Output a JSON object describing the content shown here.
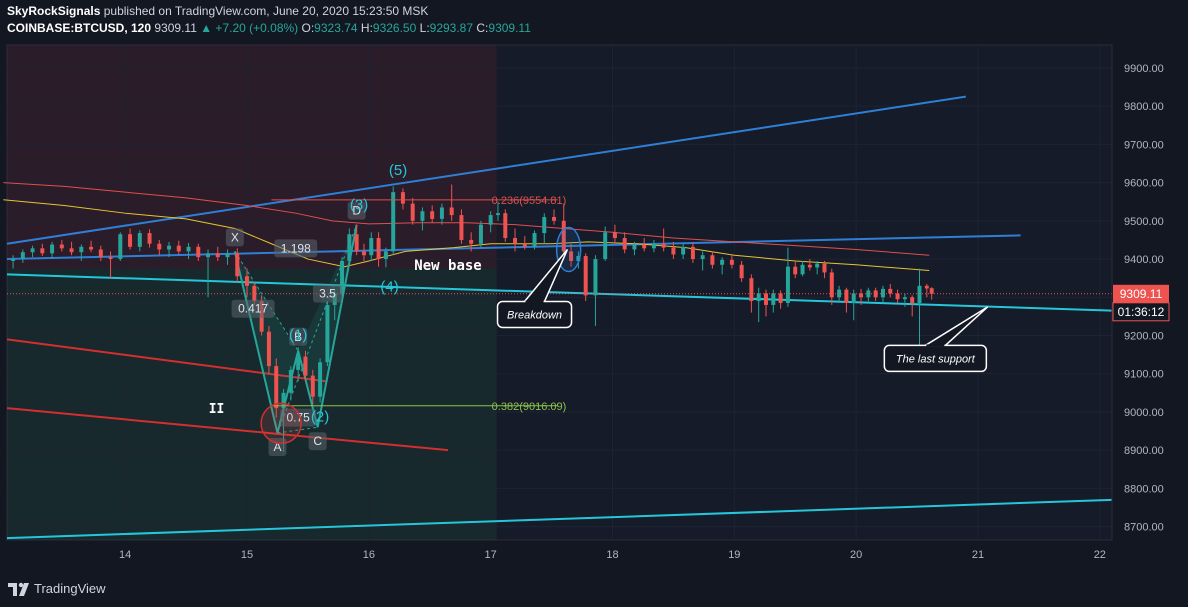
{
  "header": {
    "author": "SkyRockSignals",
    "published_text": "published on TradingView.com, June 20, 2020 15:23:50 MSK",
    "symbol": "COINBASE:BTCUSD, 120",
    "last": "9309.11",
    "change": "▲ +7.20 (+0.08%)",
    "o_label": "O:",
    "o_value": "9323.74",
    "h_label": "H:",
    "h_value": "9326.50",
    "l_label": "L:",
    "l_value": "9293.87",
    "c_label": "C:",
    "c_value": "9309.11"
  },
  "footer": {
    "brand": "TradingView"
  },
  "colors": {
    "bg": "#131722",
    "up": "#26a69a",
    "down": "#ef5350",
    "blue_line": "#2f7fd6",
    "cyan_line": "#26c6da",
    "red_line": "#d32f2f",
    "yellow_ma": "#e6c534",
    "red_ma": "#e0504d"
  },
  "chart_data": {
    "type": "candlestick",
    "title": "COINBASE:BTCUSD, 120",
    "x_ticks": [
      "14",
      "15",
      "16",
      "17",
      "18",
      "19",
      "20",
      "21",
      "22"
    ],
    "y_ticks": [
      "9900.00",
      "9800.00",
      "9700.00",
      "9600.00",
      "9500.00",
      "9400.00",
      "9300.00",
      "9200.00",
      "9100.00",
      "9000.00",
      "8900.00",
      "8800.00",
      "8700.00"
    ],
    "ylim": [
      8665,
      9960
    ],
    "xlim": [
      13.03,
      22.1
    ],
    "price_label": "9309.11",
    "countdown_label": "01:36:12",
    "candles": [
      {
        "t": 13.08,
        "o": 9395,
        "h": 9410,
        "l": 9375,
        "c": 9400
      },
      {
        "t": 13.16,
        "o": 9400,
        "h": 9425,
        "l": 9390,
        "c": 9418
      },
      {
        "t": 13.24,
        "o": 9418,
        "h": 9435,
        "l": 9405,
        "c": 9428
      },
      {
        "t": 13.32,
        "o": 9428,
        "h": 9440,
        "l": 9408,
        "c": 9415
      },
      {
        "t": 13.4,
        "o": 9415,
        "h": 9445,
        "l": 9400,
        "c": 9438
      },
      {
        "t": 13.48,
        "o": 9438,
        "h": 9450,
        "l": 9420,
        "c": 9428
      },
      {
        "t": 13.56,
        "o": 9428,
        "h": 9445,
        "l": 9410,
        "c": 9418
      },
      {
        "t": 13.64,
        "o": 9418,
        "h": 9438,
        "l": 9395,
        "c": 9432
      },
      {
        "t": 13.72,
        "o": 9432,
        "h": 9448,
        "l": 9418,
        "c": 9425
      },
      {
        "t": 13.8,
        "o": 9425,
        "h": 9435,
        "l": 9395,
        "c": 9405
      },
      {
        "t": 13.88,
        "o": 9405,
        "h": 9420,
        "l": 9350,
        "c": 9400
      },
      {
        "t": 13.96,
        "o": 9400,
        "h": 9470,
        "l": 9395,
        "c": 9465
      },
      {
        "t": 14.04,
        "o": 9465,
        "h": 9480,
        "l": 9425,
        "c": 9432
      },
      {
        "t": 14.12,
        "o": 9432,
        "h": 9475,
        "l": 9420,
        "c": 9468
      },
      {
        "t": 14.2,
        "o": 9468,
        "h": 9478,
        "l": 9430,
        "c": 9440
      },
      {
        "t": 14.28,
        "o": 9440,
        "h": 9450,
        "l": 9410,
        "c": 9425
      },
      {
        "t": 14.36,
        "o": 9425,
        "h": 9445,
        "l": 9405,
        "c": 9435
      },
      {
        "t": 14.44,
        "o": 9435,
        "h": 9448,
        "l": 9412,
        "c": 9420
      },
      {
        "t": 14.52,
        "o": 9420,
        "h": 9442,
        "l": 9400,
        "c": 9432
      },
      {
        "t": 14.6,
        "o": 9432,
        "h": 9440,
        "l": 9395,
        "c": 9405
      },
      {
        "t": 14.68,
        "o": 9405,
        "h": 9425,
        "l": 9300,
        "c": 9415
      },
      {
        "t": 14.76,
        "o": 9415,
        "h": 9432,
        "l": 9395,
        "c": 9405
      },
      {
        "t": 14.84,
        "o": 9405,
        "h": 9425,
        "l": 9385,
        "c": 9415
      },
      {
        "t": 14.92,
        "o": 9415,
        "h": 9428,
        "l": 9340,
        "c": 9355
      },
      {
        "t": 15.0,
        "o": 9355,
        "h": 9375,
        "l": 9300,
        "c": 9330
      },
      {
        "t": 15.06,
        "o": 9330,
        "h": 9340,
        "l": 9280,
        "c": 9290
      },
      {
        "t": 15.12,
        "o": 9290,
        "h": 9305,
        "l": 9200,
        "c": 9210
      },
      {
        "t": 15.18,
        "o": 9210,
        "h": 9225,
        "l": 9100,
        "c": 9120
      },
      {
        "t": 15.24,
        "o": 9120,
        "h": 9140,
        "l": 8985,
        "c": 9010
      },
      {
        "t": 15.3,
        "o": 9010,
        "h": 9060,
        "l": 8895,
        "c": 9050
      },
      {
        "t": 15.36,
        "o": 9050,
        "h": 9120,
        "l": 9030,
        "c": 9110
      },
      {
        "t": 15.42,
        "o": 9110,
        "h": 9170,
        "l": 9080,
        "c": 9145
      },
      {
        "t": 15.48,
        "o": 9145,
        "h": 9160,
        "l": 9080,
        "c": 9095
      },
      {
        "t": 15.54,
        "o": 9095,
        "h": 9110,
        "l": 9020,
        "c": 9040
      },
      {
        "t": 15.6,
        "o": 9040,
        "h": 9140,
        "l": 9025,
        "c": 9130
      },
      {
        "t": 15.66,
        "o": 9130,
        "h": 9290,
        "l": 9120,
        "c": 9280
      },
      {
        "t": 15.72,
        "o": 9280,
        "h": 9320,
        "l": 9240,
        "c": 9310
      },
      {
        "t": 15.78,
        "o": 9310,
        "h": 9405,
        "l": 9300,
        "c": 9395
      },
      {
        "t": 15.84,
        "o": 9395,
        "h": 9480,
        "l": 9385,
        "c": 9465
      },
      {
        "t": 15.9,
        "o": 9465,
        "h": 9490,
        "l": 9410,
        "c": 9420
      },
      {
        "t": 15.96,
        "o": 9420,
        "h": 9440,
        "l": 9395,
        "c": 9410
      },
      {
        "t": 16.02,
        "o": 9410,
        "h": 9470,
        "l": 9395,
        "c": 9455
      },
      {
        "t": 16.08,
        "o": 9455,
        "h": 9470,
        "l": 9380,
        "c": 9400
      },
      {
        "t": 16.14,
        "o": 9400,
        "h": 9430,
        "l": 9378,
        "c": 9420
      },
      {
        "t": 16.2,
        "o": 9420,
        "h": 9590,
        "l": 9410,
        "c": 9575
      },
      {
        "t": 16.28,
        "o": 9575,
        "h": 9585,
        "l": 9530,
        "c": 9545
      },
      {
        "t": 16.36,
        "o": 9545,
        "h": 9560,
        "l": 9490,
        "c": 9500
      },
      {
        "t": 16.44,
        "o": 9500,
        "h": 9535,
        "l": 9475,
        "c": 9525
      },
      {
        "t": 16.52,
        "o": 9525,
        "h": 9540,
        "l": 9495,
        "c": 9505
      },
      {
        "t": 16.6,
        "o": 9505,
        "h": 9545,
        "l": 9490,
        "c": 9535
      },
      {
        "t": 16.68,
        "o": 9535,
        "h": 9595,
        "l": 9500,
        "c": 9515
      },
      {
        "t": 16.76,
        "o": 9515,
        "h": 9530,
        "l": 9440,
        "c": 9450
      },
      {
        "t": 16.84,
        "o": 9450,
        "h": 9470,
        "l": 9420,
        "c": 9440
      },
      {
        "t": 16.92,
        "o": 9440,
        "h": 9500,
        "l": 9430,
        "c": 9490
      },
      {
        "t": 17.0,
        "o": 9490,
        "h": 9525,
        "l": 9470,
        "c": 9515
      },
      {
        "t": 17.06,
        "o": 9515,
        "h": 9550,
        "l": 9500,
        "c": 9520
      },
      {
        "t": 17.12,
        "o": 9520,
        "h": 9530,
        "l": 9445,
        "c": 9455
      },
      {
        "t": 17.2,
        "o": 9455,
        "h": 9480,
        "l": 9420,
        "c": 9440
      },
      {
        "t": 17.28,
        "o": 9440,
        "h": 9460,
        "l": 9425,
        "c": 9432
      },
      {
        "t": 17.36,
        "o": 9432,
        "h": 9475,
        "l": 9425,
        "c": 9468
      },
      {
        "t": 17.44,
        "o": 9468,
        "h": 9520,
        "l": 9440,
        "c": 9510
      },
      {
        "t": 17.52,
        "o": 9510,
        "h": 9530,
        "l": 9490,
        "c": 9500
      },
      {
        "t": 17.6,
        "o": 9500,
        "h": 9545,
        "l": 9400,
        "c": 9420
      },
      {
        "t": 17.66,
        "o": 9420,
        "h": 9440,
        "l": 9380,
        "c": 9395
      },
      {
        "t": 17.72,
        "o": 9395,
        "h": 9420,
        "l": 9375,
        "c": 9408
      },
      {
        "t": 17.78,
        "o": 9408,
        "h": 9415,
        "l": 9290,
        "c": 9305
      },
      {
        "t": 17.86,
        "o": 9305,
        "h": 9410,
        "l": 9225,
        "c": 9400
      },
      {
        "t": 17.94,
        "o": 9400,
        "h": 9485,
        "l": 9395,
        "c": 9470
      },
      {
        "t": 18.02,
        "o": 9470,
        "h": 9490,
        "l": 9440,
        "c": 9455
      },
      {
        "t": 18.1,
        "o": 9455,
        "h": 9470,
        "l": 9415,
        "c": 9425
      },
      {
        "t": 18.18,
        "o": 9425,
        "h": 9445,
        "l": 9410,
        "c": 9438
      },
      {
        "t": 18.26,
        "o": 9438,
        "h": 9455,
        "l": 9420,
        "c": 9428
      },
      {
        "t": 18.34,
        "o": 9428,
        "h": 9450,
        "l": 9418,
        "c": 9440
      },
      {
        "t": 18.42,
        "o": 9440,
        "h": 9480,
        "l": 9420,
        "c": 9430
      },
      {
        "t": 18.5,
        "o": 9430,
        "h": 9445,
        "l": 9400,
        "c": 9412
      },
      {
        "t": 18.58,
        "o": 9412,
        "h": 9440,
        "l": 9400,
        "c": 9432
      },
      {
        "t": 18.66,
        "o": 9432,
        "h": 9445,
        "l": 9390,
        "c": 9400
      },
      {
        "t": 18.74,
        "o": 9400,
        "h": 9420,
        "l": 9370,
        "c": 9410
      },
      {
        "t": 18.82,
        "o": 9410,
        "h": 9420,
        "l": 9375,
        "c": 9385
      },
      {
        "t": 18.9,
        "o": 9385,
        "h": 9405,
        "l": 9360,
        "c": 9398
      },
      {
        "t": 18.98,
        "o": 9398,
        "h": 9410,
        "l": 9375,
        "c": 9385
      },
      {
        "t": 19.06,
        "o": 9385,
        "h": 9395,
        "l": 9340,
        "c": 9350
      },
      {
        "t": 19.14,
        "o": 9350,
        "h": 9360,
        "l": 9260,
        "c": 9290
      },
      {
        "t": 19.2,
        "o": 9290,
        "h": 9325,
        "l": 9235,
        "c": 9310
      },
      {
        "t": 19.26,
        "o": 9310,
        "h": 9320,
        "l": 9250,
        "c": 9280
      },
      {
        "t": 19.32,
        "o": 9280,
        "h": 9320,
        "l": 9260,
        "c": 9310
      },
      {
        "t": 19.38,
        "o": 9310,
        "h": 9318,
        "l": 9270,
        "c": 9285
      },
      {
        "t": 19.44,
        "o": 9285,
        "h": 9430,
        "l": 9275,
        "c": 9380
      },
      {
        "t": 19.5,
        "o": 9380,
        "h": 9395,
        "l": 9350,
        "c": 9360
      },
      {
        "t": 19.56,
        "o": 9360,
        "h": 9395,
        "l": 9355,
        "c": 9385
      },
      {
        "t": 19.62,
        "o": 9385,
        "h": 9400,
        "l": 9370,
        "c": 9378
      },
      {
        "t": 19.68,
        "o": 9378,
        "h": 9395,
        "l": 9360,
        "c": 9388
      },
      {
        "t": 19.74,
        "o": 9388,
        "h": 9395,
        "l": 9350,
        "c": 9365
      },
      {
        "t": 19.8,
        "o": 9365,
        "h": 9375,
        "l": 9280,
        "c": 9300
      },
      {
        "t": 19.86,
        "o": 9300,
        "h": 9330,
        "l": 9285,
        "c": 9320
      },
      {
        "t": 19.92,
        "o": 9320,
        "h": 9325,
        "l": 9260,
        "c": 9285
      },
      {
        "t": 19.98,
        "o": 9285,
        "h": 9320,
        "l": 9240,
        "c": 9310
      },
      {
        "t": 20.04,
        "o": 9310,
        "h": 9322,
        "l": 9280,
        "c": 9300
      },
      {
        "t": 20.1,
        "o": 9300,
        "h": 9325,
        "l": 9285,
        "c": 9318
      },
      {
        "t": 20.16,
        "o": 9318,
        "h": 9325,
        "l": 9290,
        "c": 9300
      },
      {
        "t": 20.22,
        "o": 9300,
        "h": 9330,
        "l": 9285,
        "c": 9322
      },
      {
        "t": 20.28,
        "o": 9322,
        "h": 9335,
        "l": 9300,
        "c": 9310
      },
      {
        "t": 20.34,
        "o": 9310,
        "h": 9320,
        "l": 9285,
        "c": 9295
      },
      {
        "t": 20.4,
        "o": 9295,
        "h": 9310,
        "l": 9275,
        "c": 9300
      },
      {
        "t": 20.46,
        "o": 9300,
        "h": 9305,
        "l": 9250,
        "c": 9285
      },
      {
        "t": 20.52,
        "o": 9285,
        "h": 9375,
        "l": 9160,
        "c": 9330
      },
      {
        "t": 20.58,
        "o": 9330,
        "h": 9335,
        "l": 9300,
        "c": 9323
      },
      {
        "t": 20.62,
        "o": 9323.74,
        "h": 9326.5,
        "l": 9293.87,
        "c": 9309.11
      }
    ],
    "ma_yellow": [
      [
        13.0,
        9555
      ],
      [
        13.5,
        9540
      ],
      [
        14.0,
        9520
      ],
      [
        14.5,
        9505
      ],
      [
        14.9,
        9480
      ],
      [
        15.2,
        9440
      ],
      [
        15.5,
        9400
      ],
      [
        15.8,
        9380
      ],
      [
        16.0,
        9395
      ],
      [
        16.3,
        9420
      ],
      [
        16.7,
        9430
      ],
      [
        17.0,
        9440
      ],
      [
        17.5,
        9440
      ],
      [
        17.8,
        9445
      ],
      [
        18.2,
        9440
      ],
      [
        18.6,
        9430
      ],
      [
        19.0,
        9410
      ],
      [
        19.5,
        9395
      ],
      [
        20.0,
        9385
      ],
      [
        20.6,
        9370
      ]
    ],
    "ma_red": [
      [
        13.0,
        9600
      ],
      [
        13.5,
        9590
      ],
      [
        14.0,
        9575
      ],
      [
        14.5,
        9560
      ],
      [
        15.0,
        9540
      ],
      [
        15.4,
        9520
      ],
      [
        15.7,
        9500
      ],
      [
        16.0,
        9492
      ],
      [
        16.4,
        9495
      ],
      [
        16.8,
        9495
      ],
      [
        17.2,
        9490
      ],
      [
        17.6,
        9480
      ],
      [
        18.0,
        9470
      ],
      [
        18.5,
        9455
      ],
      [
        19.0,
        9445
      ],
      [
        19.5,
        9435
      ],
      [
        20.0,
        9425
      ],
      [
        20.6,
        9410
      ]
    ],
    "trend_lines": [
      {
        "name": "upper-blue",
        "color": "blue",
        "points": [
          [
            13.03,
            9440
          ],
          [
            20.9,
            9825
          ]
        ]
      },
      {
        "name": "lower-blue",
        "color": "blue",
        "points": [
          [
            13.03,
            9400
          ],
          [
            21.35,
            9462
          ]
        ]
      },
      {
        "name": "cyan-support",
        "color": "cyan",
        "points": [
          [
            13.03,
            9360
          ],
          [
            22.1,
            9265
          ]
        ]
      },
      {
        "name": "cyan-bottom",
        "color": "cyan",
        "points": [
          [
            13.03,
            8670
          ],
          [
            22.1,
            8770
          ]
        ]
      },
      {
        "name": "red-upper",
        "color": "red",
        "points": [
          [
            13.03,
            9190
          ],
          [
            15.65,
            9080
          ]
        ]
      },
      {
        "name": "red-lower",
        "color": "red",
        "points": [
          [
            13.03,
            9010
          ],
          [
            16.65,
            8900
          ]
        ]
      }
    ],
    "fib_levels": [
      {
        "label": "0.236(9554.81)",
        "price": 9554.81,
        "from": 15.2,
        "to": 17.55,
        "color": "#e0504d"
      },
      {
        "label": "0.382(9016.09)",
        "price": 9016.09,
        "from": 15.2,
        "to": 17.55,
        "color": "#8bc34a"
      }
    ],
    "pattern_points": [
      {
        "label": "X",
        "t": 14.9,
        "p": 9420
      },
      {
        "label": "A",
        "t": 15.25,
        "p": 8945
      },
      {
        "label": "B",
        "t": 15.42,
        "p": 9160
      },
      {
        "label": "C",
        "t": 15.58,
        "p": 8960
      },
      {
        "label": "D",
        "t": 15.9,
        "p": 9490
      }
    ],
    "ratio_labels": [
      {
        "label": "1.198",
        "t": 15.4,
        "p": 9428
      },
      {
        "label": "0.417",
        "t": 15.05,
        "p": 9270
      },
      {
        "label": "3.5",
        "t": 15.66,
        "p": 9310
      },
      {
        "label": "0.75",
        "t": 15.42,
        "p": 8985
      }
    ],
    "wave_labels": [
      {
        "label": "(1)",
        "t": 15.42,
        "p": 9190
      },
      {
        "label": "(2)",
        "t": 15.6,
        "p": 8975
      },
      {
        "label": "(3)",
        "t": 15.92,
        "p": 9530
      },
      {
        "label": "(4)",
        "t": 16.17,
        "p": 9315
      },
      {
        "label": "(5)",
        "t": 16.24,
        "p": 9620
      }
    ],
    "annotations": [
      {
        "label": "New base",
        "t": 16.65,
        "p": 9385
      },
      {
        "label": "II",
        "t": 14.75,
        "p": 9010
      },
      {
        "label": "Breakdown",
        "t": 17.36,
        "p": 9255
      },
      {
        "label": "The last support",
        "t": 20.65,
        "p": 9140
      }
    ]
  }
}
